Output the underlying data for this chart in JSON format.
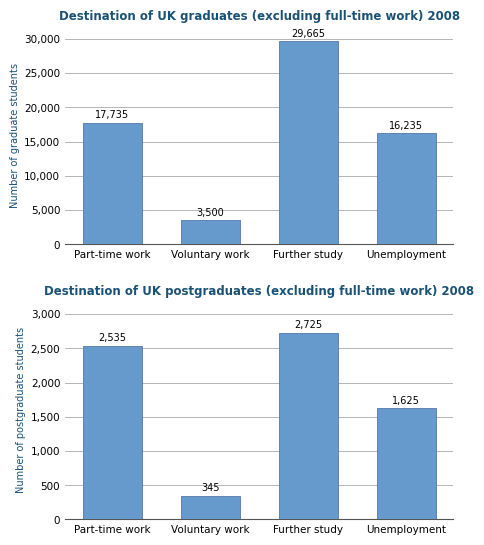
{
  "grad_title": "Destination of UK graduates (excluding full-time work) 2008",
  "postgrad_title": "Destination of UK postgraduates (excluding full-time work) 2008",
  "categories": [
    "Part-time work",
    "Voluntary work",
    "Further study",
    "Unemployment"
  ],
  "grad_values": [
    17735,
    3500,
    29665,
    16235
  ],
  "postgrad_values": [
    2535,
    345,
    2725,
    1625
  ],
  "grad_labels": [
    "17,735",
    "3,500",
    "29,665",
    "16,235"
  ],
  "postgrad_labels": [
    "2,535",
    "345",
    "2,725",
    "1,625"
  ],
  "bar_color": "#6699cc",
  "bar_edgecolor": "#5577aa",
  "grad_ylabel": "Number of graduate students",
  "postgrad_ylabel": "Number of postgraduate students",
  "grad_ylim": [
    0,
    32000
  ],
  "postgrad_ylim": [
    0,
    3200
  ],
  "grad_yticks": [
    0,
    5000,
    10000,
    15000,
    20000,
    25000,
    30000
  ],
  "postgrad_yticks": [
    0,
    500,
    1000,
    1500,
    2000,
    2500,
    3000
  ],
  "title_color": "#1a5276",
  "axis_label_color": "#1a5276",
  "title_fontsize": 8.5,
  "label_fontsize": 7,
  "tick_fontsize": 7.5,
  "annotation_fontsize": 7,
  "bar_width": 0.6,
  "grid_color": "#999999",
  "bottom_spine_color": "#555555"
}
